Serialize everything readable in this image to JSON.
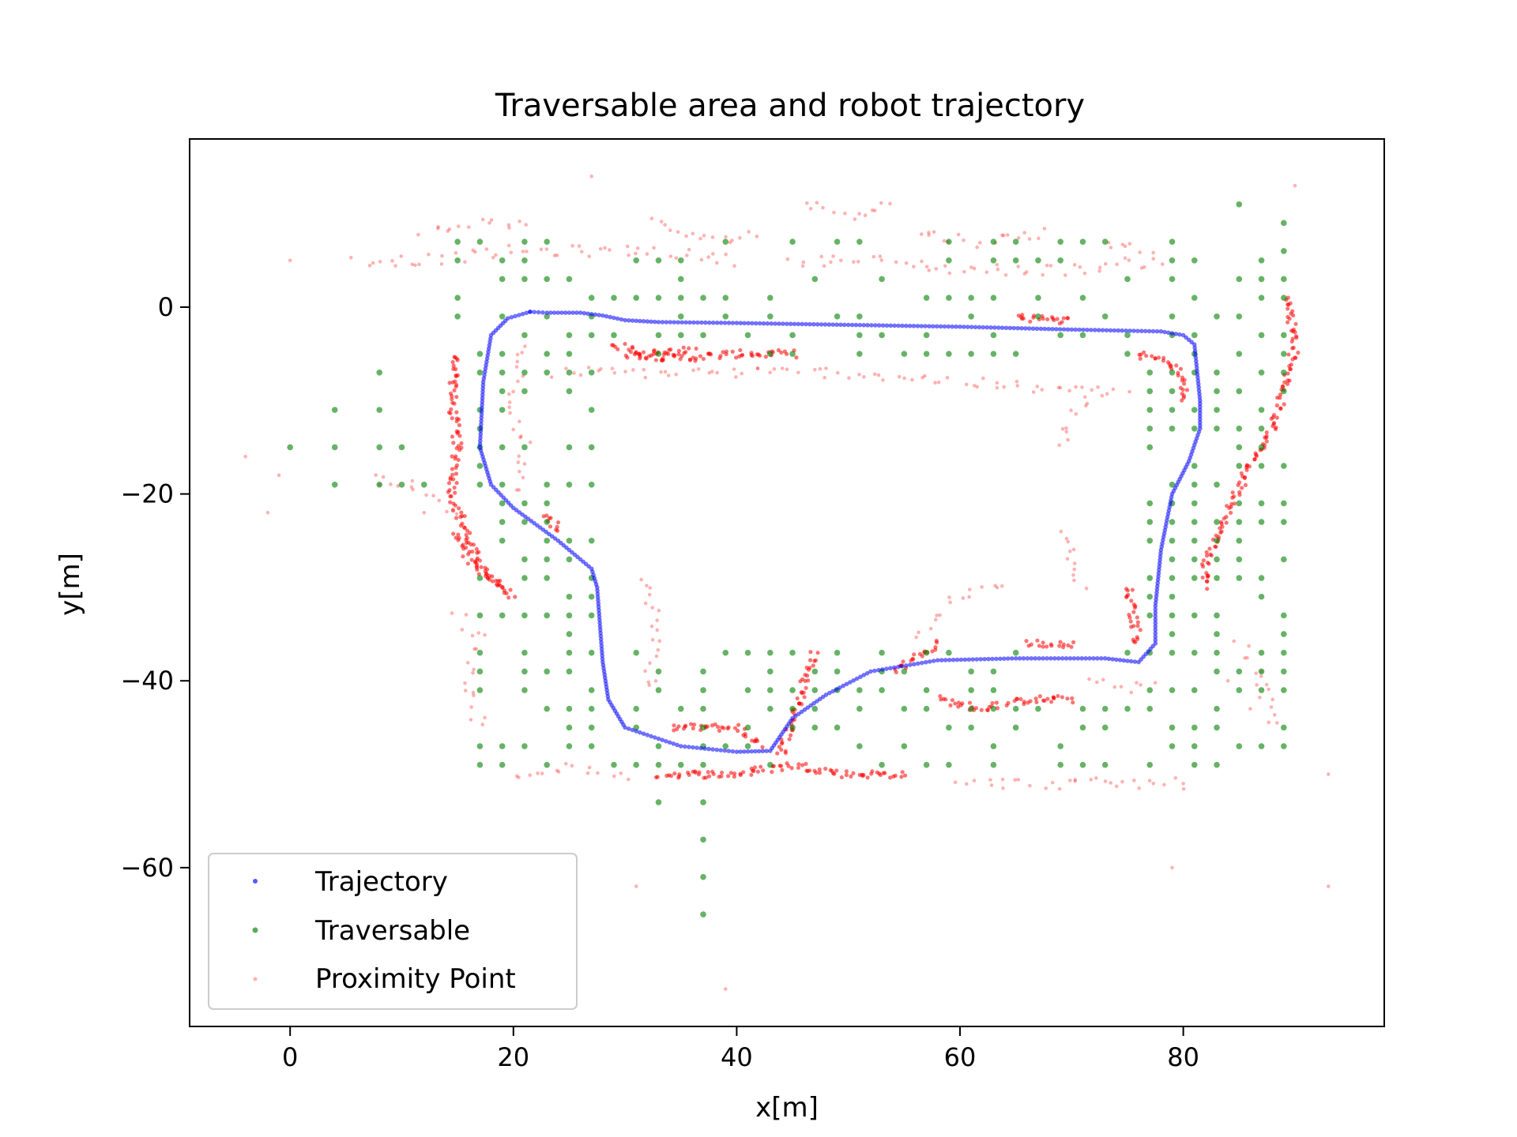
{
  "chart_data": {
    "type": "scatter",
    "title": "Traversable area and robot trajectory",
    "xlabel": "x[m]",
    "ylabel": "y[m]",
    "xlim": [
      -9,
      98
    ],
    "ylim": [
      -77,
      18
    ],
    "xticks": [
      0,
      20,
      40,
      60,
      80
    ],
    "yticks": [
      0,
      -20,
      -40,
      -60
    ],
    "xtick_labels": [
      "0",
      "20",
      "40",
      "60",
      "80"
    ],
    "ytick_labels": [
      "0",
      "−20",
      "−40",
      "−60"
    ],
    "grid": false,
    "legend_position": "lower-left",
    "series": [
      {
        "name": "Trajectory",
        "color": "#0000ff",
        "marker": "dot",
        "path": [
          [
            21.5,
            -0.5
          ],
          [
            23,
            -0.6
          ],
          [
            26,
            -0.6
          ],
          [
            28,
            -0.9
          ],
          [
            30,
            -1.4
          ],
          [
            33,
            -1.6
          ],
          [
            40,
            -1.7
          ],
          [
            50,
            -1.9
          ],
          [
            60,
            -2.1
          ],
          [
            70,
            -2.4
          ],
          [
            78,
            -2.6
          ],
          [
            80,
            -3
          ],
          [
            81,
            -4
          ],
          [
            81.5,
            -10
          ],
          [
            81.5,
            -13
          ],
          [
            80.5,
            -16.5
          ],
          [
            79,
            -20
          ],
          [
            78,
            -26
          ],
          [
            77.5,
            -32
          ],
          [
            77.5,
            -36
          ],
          [
            76,
            -38
          ],
          [
            73,
            -37.6
          ],
          [
            65,
            -37.6
          ],
          [
            58,
            -37.8
          ],
          [
            52,
            -39
          ],
          [
            48,
            -41.5
          ],
          [
            45,
            -44
          ],
          [
            43,
            -47.5
          ],
          [
            40,
            -47.6
          ],
          [
            35,
            -47
          ],
          [
            30,
            -45
          ],
          [
            28.5,
            -42
          ],
          [
            28,
            -38
          ],
          [
            27.5,
            -30
          ],
          [
            27,
            -28
          ],
          [
            24,
            -25
          ],
          [
            20,
            -21.5
          ],
          [
            18,
            -19
          ],
          [
            17,
            -15
          ],
          [
            17.3,
            -8
          ],
          [
            18,
            -3
          ],
          [
            19.5,
            -1.2
          ],
          [
            21.5,
            -0.5
          ]
        ]
      },
      {
        "name": "Traversable",
        "color": "#008000",
        "marker": "dot",
        "grid_step": 2,
        "band_x": [
          17,
          83
        ],
        "band_y": [
          -49,
          -2
        ],
        "points": [
          [
            37,
            -53
          ],
          [
            37,
            -57
          ],
          [
            37,
            -61
          ],
          [
            37,
            -65
          ],
          [
            33,
            -53
          ],
          [
            4,
            -11
          ],
          [
            4,
            -15
          ],
          [
            4,
            -19
          ],
          [
            0,
            -15
          ],
          [
            8,
            -15
          ],
          [
            10,
            -15
          ],
          [
            8,
            -11
          ],
          [
            8,
            -19
          ],
          [
            8,
            -7
          ],
          [
            12,
            -19
          ],
          [
            10,
            -19
          ],
          [
            85,
            11
          ],
          [
            89,
            9
          ],
          [
            89,
            6
          ]
        ]
      },
      {
        "name": "Proximity Point",
        "color": "#ff0000",
        "marker": "dot",
        "dense_segments": [
          [
            [
              82,
              -30
            ],
            [
              82,
              -27
            ],
            [
              84,
              -22
            ],
            [
              86,
              -17
            ],
            [
              88,
              -13
            ],
            [
              89,
              -9
            ],
            [
              90,
              -4
            ],
            [
              89.5,
              0
            ],
            [
              89,
              1
            ]
          ],
          [
            [
              15,
              -5
            ],
            [
              14.5,
              -10
            ],
            [
              15,
              -15
            ],
            [
              14.5,
              -20
            ],
            [
              17,
              -28
            ],
            [
              19,
              -30
            ]
          ],
          [
            [
              30,
              -5
            ],
            [
              35,
              -5.5
            ],
            [
              40,
              -5
            ],
            [
              45,
              -5
            ]
          ],
          [
            [
              34,
              -45
            ],
            [
              40,
              -45
            ],
            [
              42,
              -47
            ]
          ],
          [
            [
              33,
              -50
            ],
            [
              40,
              -50
            ],
            [
              45,
              -49
            ],
            [
              50,
              -50
            ],
            [
              55,
              -50
            ]
          ],
          [
            [
              58,
              -42
            ],
            [
              62,
              -43
            ],
            [
              66,
              -42
            ],
            [
              70,
              -42
            ]
          ],
          [
            [
              76,
              -5
            ],
            [
              79,
              -6
            ],
            [
              80,
              -8
            ],
            [
              80,
              -10
            ]
          ],
          [
            [
              65,
              -1
            ],
            [
              70,
              -1.5
            ]
          ],
          [
            [
              29,
              -4
            ],
            [
              32,
              -5
            ],
            [
              36,
              -4.5
            ]
          ],
          [
            [
              75,
              -30
            ],
            [
              76,
              -36
            ]
          ],
          [
            [
              47,
              -37
            ],
            [
              45,
              -44
            ],
            [
              44,
              -48
            ]
          ],
          [
            [
              23,
              -22
            ],
            [
              24,
              -24
            ]
          ],
          [
            [
              15,
              -24
            ],
            [
              16,
              -27
            ],
            [
              18,
              -29
            ],
            [
              20,
              -31
            ]
          ],
          [
            [
              66,
              -36
            ],
            [
              70,
              -36
            ]
          ],
          [
            [
              54,
              -39
            ],
            [
              58,
              -36
            ]
          ]
        ],
        "outliers": [
          [
            -4,
            -16
          ],
          [
            -1,
            -18
          ],
          [
            -2,
            -22
          ],
          [
            0,
            5
          ],
          [
            93,
            -50
          ],
          [
            93,
            -62
          ],
          [
            39,
            -73
          ],
          [
            27,
            14
          ],
          [
            8,
            -19
          ],
          [
            12,
            -22
          ],
          [
            80,
            -51
          ],
          [
            79,
            -60
          ],
          [
            31,
            -62
          ],
          [
            90,
            13
          ],
          [
            88,
            -42
          ],
          [
            86,
            -43
          ],
          [
            84,
            -40
          ],
          [
            87,
            -39
          ]
        ],
        "outline_paths": [
          [
            [
              12,
              8
            ],
            [
              17,
              9
            ],
            [
              21,
              9
            ]
          ],
          [
            [
              32,
              9
            ],
            [
              38,
              7
            ],
            [
              42,
              8
            ]
          ],
          [
            [
              46,
              11
            ],
            [
              50,
              10
            ],
            [
              54,
              11
            ]
          ],
          [
            [
              56,
              8
            ],
            [
              62,
              7
            ],
            [
              68,
              8
            ]
          ],
          [
            [
              73,
              7
            ],
            [
              77,
              6
            ]
          ],
          [
            [
              6,
              5
            ],
            [
              12,
              5
            ],
            [
              20,
              6
            ],
            [
              27,
              6
            ],
            [
              33,
              6
            ],
            [
              40,
              5
            ]
          ],
          [
            [
              45,
              5
            ],
            [
              52,
              5
            ],
            [
              60,
              4
            ],
            [
              70,
              4
            ],
            [
              78,
              5
            ]
          ],
          [
            [
              21,
              -4
            ],
            [
              20,
              -10
            ],
            [
              21,
              -15
            ],
            [
              20,
              -20
            ]
          ],
          [
            [
              24,
              -7
            ],
            [
              30,
              -7
            ],
            [
              40,
              -7
            ],
            [
              50,
              -7
            ],
            [
              60,
              -8
            ],
            [
              70,
              -9
            ],
            [
              75,
              -9
            ]
          ],
          [
            [
              72,
              -9
            ],
            [
              70,
              -12
            ],
            [
              69,
              -15
            ]
          ],
          [
            [
              69,
              -24
            ],
            [
              70,
              -27
            ],
            [
              71,
              -30
            ]
          ],
          [
            [
              20,
              -50
            ],
            [
              25,
              -49
            ],
            [
              30,
              -50
            ]
          ],
          [
            [
              60,
              -51
            ],
            [
              70,
              -51
            ],
            [
              80,
              -51
            ]
          ],
          [
            [
              32,
              -29
            ],
            [
              33,
              -35
            ],
            [
              32,
              -41
            ]
          ],
          [
            [
              17,
              -45
            ],
            [
              16,
              -40
            ],
            [
              17,
              -35
            ],
            [
              15,
              -33
            ]
          ],
          [
            [
              56,
              -35
            ],
            [
              60,
              -31
            ],
            [
              64,
              -30
            ]
          ],
          [
            [
              85,
              -36
            ],
            [
              87,
              -40
            ],
            [
              88,
              -45
            ]
          ],
          [
            [
              72,
              -40
            ],
            [
              75,
              -41
            ],
            [
              77,
              -40
            ]
          ],
          [
            [
              8,
              -18
            ],
            [
              11,
              -19
            ],
            [
              13,
              -21
            ],
            [
              15,
              -22
            ]
          ]
        ]
      }
    ]
  }
}
